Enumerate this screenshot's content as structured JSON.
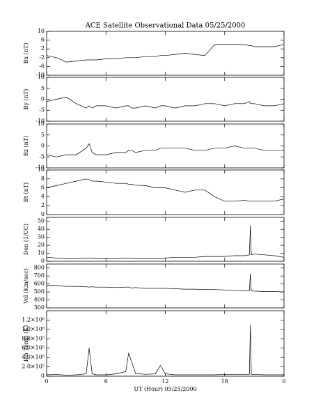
{
  "chart_data": [
    {
      "type": "line",
      "title": "ACE Satellite Observational Data   05/25/2000",
      "ylabel": "Bx (nT)",
      "x": [
        0,
        1,
        2,
        3,
        4,
        4.3,
        4.6,
        5,
        6,
        7,
        8,
        8.3,
        8.6,
        9,
        10,
        11,
        11.5,
        12,
        13,
        14,
        15,
        16,
        17,
        18,
        19,
        20,
        20.5,
        20.6,
        20.7,
        21,
        22,
        23,
        24
      ],
      "values": [
        -1,
        -2,
        -4,
        -3.5,
        -3,
        -3,
        -3,
        -3,
        -2.5,
        -2.5,
        -2,
        -2,
        -2,
        -2,
        -1.5,
        -1.5,
        -1,
        -1,
        -0.5,
        0,
        -0.5,
        -1,
        4,
        4,
        4,
        4,
        3.5,
        3.5,
        3.5,
        3,
        3,
        3,
        4
      ],
      "xlim": [
        0,
        24
      ],
      "ylim": [
        -10,
        10
      ],
      "yticks": [
        10,
        6,
        2,
        -2,
        -6,
        -10
      ]
    },
    {
      "type": "line",
      "ylabel": "By (nT)",
      "x": [
        0,
        1,
        2,
        3,
        4,
        4.3,
        4.6,
        5,
        6,
        7,
        8,
        8.3,
        8.6,
        9,
        10,
        11,
        11.5,
        12,
        13,
        14,
        15,
        16,
        17,
        18,
        19,
        20,
        20.5,
        20.6,
        20.7,
        21,
        22,
        23,
        24
      ],
      "values": [
        -1,
        0,
        1,
        -2,
        -4,
        -3,
        -4,
        -3,
        -3,
        -4,
        -3,
        -3,
        -4,
        -4,
        -3,
        -4,
        -3,
        -3,
        -4,
        -3,
        -3,
        -2,
        -2,
        -3,
        -2,
        -2,
        -1,
        -2,
        -2,
        -2,
        -3,
        -3,
        -2
      ],
      "xlim": [
        0,
        24
      ],
      "ylim": [
        -10,
        10
      ],
      "yticks": [
        10,
        5,
        0,
        -5,
        -10
      ]
    },
    {
      "type": "line",
      "ylabel": "Bz (nT)",
      "x": [
        0,
        1,
        2,
        3,
        4,
        4.3,
        4.6,
        5,
        6,
        7,
        8,
        8.3,
        8.6,
        9,
        10,
        11,
        11.5,
        12,
        13,
        14,
        15,
        16,
        17,
        18,
        19,
        20,
        20.5,
        20.6,
        20.7,
        21,
        22,
        23,
        24
      ],
      "values": [
        -4,
        -5,
        -4,
        -4,
        -1,
        1,
        -3,
        -4,
        -4,
        -3,
        -3,
        -2,
        -2,
        -3,
        -2,
        -2,
        -1,
        -1,
        -1,
        -1,
        -2,
        -2,
        -1,
        -1,
        0,
        -1,
        -1,
        -1,
        -1,
        -1,
        -2,
        -2,
        -2
      ],
      "xlim": [
        0,
        24
      ],
      "ylim": [
        -10,
        10
      ],
      "yticks": [
        10,
        5,
        0,
        -5,
        -10
      ]
    },
    {
      "type": "line",
      "ylabel": "Bt (nT)",
      "x": [
        0,
        1,
        2,
        3,
        4,
        4.3,
        4.6,
        5,
        6,
        7,
        8,
        8.3,
        8.6,
        9,
        10,
        11,
        11.5,
        12,
        13,
        14,
        15,
        16,
        17,
        18,
        19,
        20,
        20.5,
        20.6,
        20.7,
        21,
        22,
        23,
        24
      ],
      "values": [
        6,
        6.5,
        7,
        7.5,
        8,
        7.8,
        7.5,
        7.5,
        7.3,
        7,
        7,
        6.8,
        6.8,
        6.6,
        6.5,
        6,
        6,
        6,
        5.5,
        5,
        5.5,
        5.5,
        4,
        3,
        3,
        3.2,
        3,
        3,
        3,
        3,
        3,
        3,
        3.5
      ],
      "xlim": [
        0,
        24
      ],
      "ylim": [
        0,
        10
      ],
      "yticks": [
        10,
        8,
        6,
        4,
        2,
        0
      ]
    },
    {
      "type": "line",
      "ylabel": "Den (1/CC)",
      "x": [
        0,
        1,
        2,
        3,
        4,
        4.3,
        4.6,
        5,
        6,
        7,
        8,
        8.3,
        8.6,
        9,
        10,
        11,
        11.5,
        12,
        13,
        14,
        15,
        16,
        17,
        18,
        19,
        20,
        20.5,
        20.6,
        20.7,
        21,
        22,
        23,
        24
      ],
      "values": [
        5,
        4,
        3,
        3,
        4,
        4,
        4,
        3,
        3,
        3,
        4,
        4,
        4,
        3,
        3,
        3,
        3,
        4,
        5,
        5,
        5,
        6,
        6,
        6,
        7,
        7,
        8,
        45,
        8,
        9,
        8,
        7,
        5
      ],
      "xlim": [
        0,
        24
      ],
      "ylim": [
        0,
        55
      ],
      "yticks": [
        50,
        40,
        30,
        20,
        10,
        0
      ]
    },
    {
      "type": "line",
      "ylabel": "Vel (Km/sec)",
      "x": [
        0,
        1,
        2,
        3,
        4,
        4.3,
        4.6,
        5,
        6,
        7,
        8,
        8.3,
        8.6,
        9,
        10,
        11,
        11.5,
        12,
        13,
        14,
        15,
        16,
        17,
        18,
        19,
        20,
        20.5,
        20.6,
        20.7,
        21,
        22,
        23,
        24
      ],
      "values": [
        580,
        580,
        570,
        570,
        565,
        560,
        565,
        560,
        560,
        555,
        560,
        560,
        550,
        555,
        545,
        545,
        545,
        545,
        540,
        535,
        535,
        530,
        530,
        525,
        520,
        515,
        515,
        730,
        515,
        510,
        505,
        505,
        500
      ],
      "xlim": [
        0,
        24
      ],
      "ylim": [
        300,
        850
      ],
      "yticks": [
        800,
        700,
        600,
        500,
        400,
        300
      ]
    },
    {
      "type": "line",
      "ylabel": "Ion Temp (K)",
      "xlabel": "UT (Hour)  05/25/2000",
      "x": [
        0,
        1,
        2,
        3,
        4,
        4.3,
        4.6,
        5,
        6,
        7,
        8,
        8.3,
        8.6,
        9,
        10,
        11,
        11.5,
        12,
        13,
        14,
        15,
        16,
        17,
        18,
        19,
        20,
        20.5,
        20.6,
        20.7,
        21,
        22,
        23,
        24
      ],
      "values": [
        30000,
        40000,
        20000,
        30000,
        50000,
        600000,
        50000,
        30000,
        30000,
        50000,
        100000,
        500000,
        300000,
        60000,
        40000,
        50000,
        230000,
        50000,
        30000,
        30000,
        30000,
        30000,
        30000,
        40000,
        40000,
        40000,
        40000,
        1100000,
        40000,
        40000,
        30000,
        30000,
        30000
      ],
      "xlim": [
        0,
        24
      ],
      "ylim": [
        0,
        1400000
      ],
      "yticks": [
        {
          "value": 1200000,
          "label": "1.2×10⁶"
        },
        {
          "value": 1000000,
          "label": "1.0×10⁶"
        },
        {
          "value": 800000,
          "label": "8.0×10⁵"
        },
        {
          "value": 600000,
          "label": "6.0×10⁵"
        },
        {
          "value": 400000,
          "label": "4.0×10⁵"
        },
        {
          "value": 200000,
          "label": "2.0×10⁵"
        },
        0
      ],
      "xticks": [
        0,
        6,
        12,
        18,
        {
          "value": 24,
          "label": "0"
        }
      ]
    }
  ]
}
